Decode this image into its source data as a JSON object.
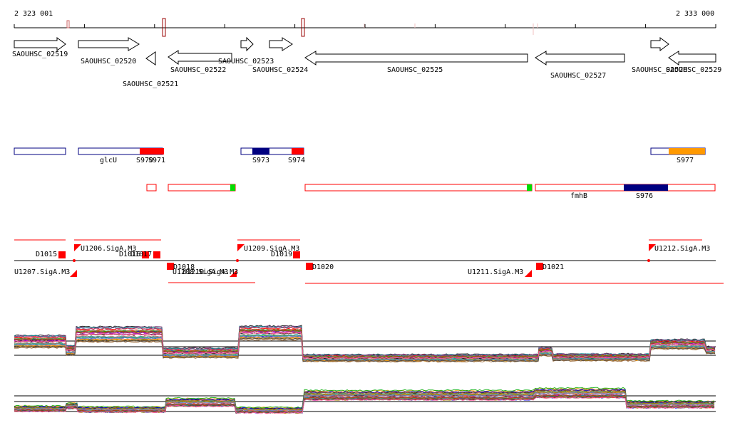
{
  "ruler": {
    "start_label": "2 323 001",
    "end_label": "2 333 000"
  },
  "genes": [
    {
      "label": "SAOUHSC_02519",
      "strand": "+"
    },
    {
      "label": "SAOUHSC_02520",
      "strand": "+"
    },
    {
      "label": "SAOUHSC_02521",
      "strand": "-"
    },
    {
      "label": "SAOUHSC_02522",
      "strand": "-"
    },
    {
      "label": "SAOUHSC_02523",
      "strand": "+"
    },
    {
      "label": "SAOUHSC_02524",
      "strand": "+"
    },
    {
      "label": "SAOUHSC_02525",
      "strand": "-"
    },
    {
      "label": "SAOUHSC_02527",
      "strand": "-"
    },
    {
      "label": "SAOUHSC_02528",
      "strand": "+"
    },
    {
      "label": "SAOUHSC_02529",
      "strand": "-"
    }
  ],
  "features_plus": [
    {
      "label": "",
      "color": "#ffffff"
    },
    {
      "label": "glcU",
      "color": "#ffffff"
    },
    {
      "label": "S970",
      "color": "#ff0000"
    },
    {
      "label": "S971",
      "color": "#ff0000"
    },
    {
      "label": "S973",
      "color": "#000080"
    },
    {
      "label": "S974",
      "color": "#ff0000"
    },
    {
      "label": "S977",
      "color": "#ff9900"
    }
  ],
  "features_minus": [
    {
      "label": "fmhB",
      "color": "#ffffff"
    },
    {
      "label": "S976",
      "color": "#000080"
    },
    {
      "label": "",
      "color": "#00dd00"
    }
  ],
  "promoters_top": [
    "D1015",
    "U1206.SigA.M3",
    "D1016",
    "D1017",
    "U1209.SigA.M3",
    "D1019",
    "U1212.SigA.M3"
  ],
  "promoters_bottom": [
    "U1207.SigA.M3",
    "D1018",
    "U1208.SigA.M3",
    "U1210.SigA.M3",
    "D1020",
    "U1211.SigA.M3",
    "D1021"
  ],
  "colors": {
    "gene_outline": "#000000",
    "feature_outline": "#000080",
    "red": "#ff0000",
    "navy": "#000080",
    "orange": "#ff9900",
    "green": "#00dd00",
    "ruler_mark": "#990000"
  },
  "expression_tracks": [
    {
      "name": "plus-strand-expression"
    },
    {
      "name": "minus-strand-expression"
    }
  ]
}
